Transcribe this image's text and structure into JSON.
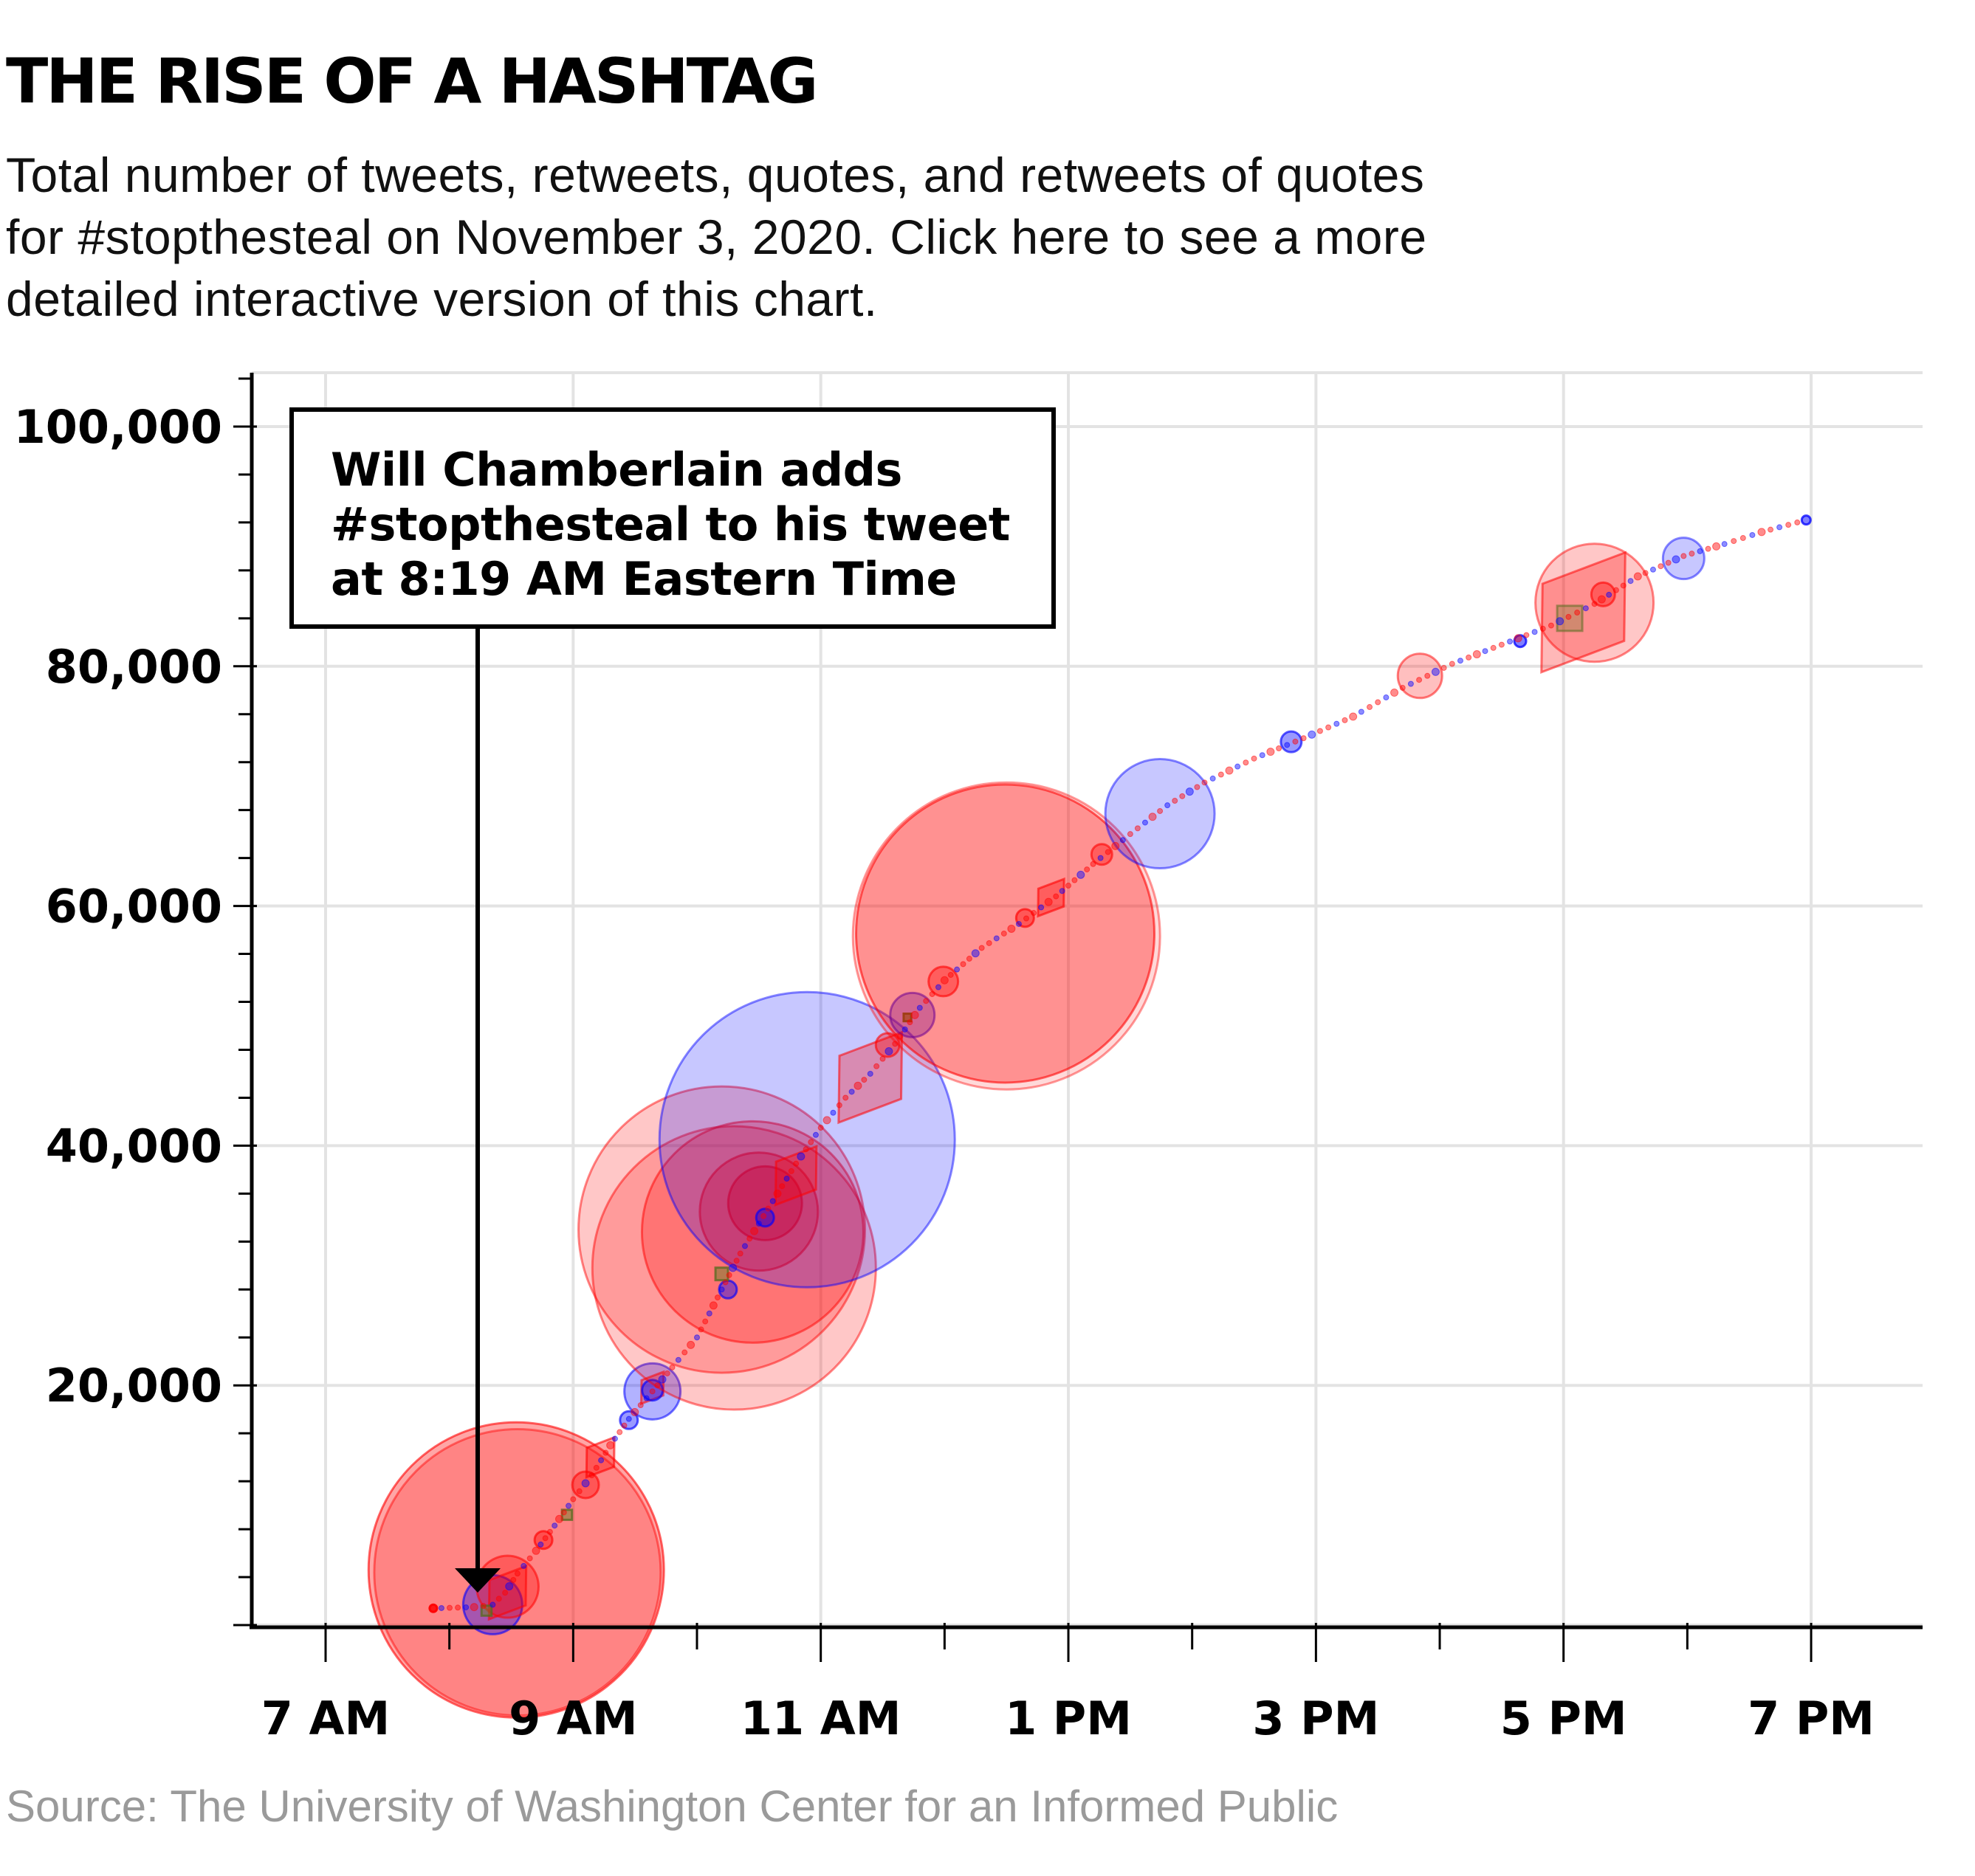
{
  "header": {
    "title": "THE RISE OF A HASHTAG",
    "subtitle_lines": [
      "Total number of tweets, retweets, quotes, and retweets of quotes",
      "for #stopthesteal on November 3, 2020. Click here to see a more",
      "detailed interactive version of this chart."
    ]
  },
  "annotation": {
    "lines": [
      "Will Chamberlain adds",
      "#stopthesteal to his tweet",
      "at 8:19 AM Eastern Time"
    ],
    "points_to": {
      "hour": 8.32,
      "value": 0
    }
  },
  "source": "Source: The University of Washington Center for an Informed Public",
  "colors": {
    "red": "#ff0000",
    "blue": "#0000ff",
    "green": "#2a8a2a",
    "grid": "#e3e3e3",
    "axis": "#000000",
    "source_text": "#9a9a9a"
  },
  "chart_data": {
    "type": "scatter",
    "title": "THE RISE OF A HASHTAG",
    "xlabel": "",
    "ylabel": "",
    "x_unit": "hour of day (Eastern Time, decimal)",
    "xlim": [
      6.5,
      19.9
    ],
    "ylim": [
      0,
      104000
    ],
    "x_ticks": [
      7,
      8,
      9,
      10,
      11,
      12,
      13,
      14,
      15,
      16,
      17,
      18,
      19
    ],
    "x_tick_labels": [
      {
        "hour": 7,
        "label": "7 AM"
      },
      {
        "hour": 9,
        "label": "9 AM"
      },
      {
        "hour": 11,
        "label": "11 AM"
      },
      {
        "hour": 13,
        "label": "1 PM"
      },
      {
        "hour": 15,
        "label": "3 PM"
      },
      {
        "hour": 17,
        "label": "5 PM"
      },
      {
        "hour": 19,
        "label": "7 PM"
      }
    ],
    "y_ticks_minor_step": 4000,
    "y_tick_labels": [
      {
        "value": 20000,
        "label": "20,000"
      },
      {
        "value": 40000,
        "label": "40,000"
      },
      {
        "value": 60000,
        "label": "60,000"
      },
      {
        "value": 80000,
        "label": "80,000"
      },
      {
        "value": 100000,
        "label": "100,000"
      }
    ],
    "grid": true,
    "curve": {
      "name": "cumulative total",
      "points": [
        [
          7.87,
          1400
        ],
        [
          8.2,
          1500
        ],
        [
          8.35,
          1700
        ],
        [
          8.45,
          2700
        ],
        [
          8.55,
          4300
        ],
        [
          8.7,
          6200
        ],
        [
          8.85,
          8300
        ],
        [
          9.0,
          10500
        ],
        [
          9.15,
          12500
        ],
        [
          9.3,
          15000
        ],
        [
          9.45,
          17200
        ],
        [
          9.64,
          19500
        ],
        [
          9.8,
          21500
        ],
        [
          10.0,
          24000
        ],
        [
          10.2,
          28000
        ],
        [
          10.35,
          31000
        ],
        [
          10.5,
          33500
        ],
        [
          10.65,
          36000
        ],
        [
          10.8,
          38500
        ],
        [
          11.0,
          41500
        ],
        [
          11.2,
          44000
        ],
        [
          11.4,
          46000
        ],
        [
          11.6,
          48500
        ],
        [
          11.8,
          51500
        ],
        [
          12.0,
          53800
        ],
        [
          12.3,
          56500
        ],
        [
          12.6,
          58500
        ],
        [
          12.9,
          60800
        ],
        [
          13.2,
          63500
        ],
        [
          13.5,
          66000
        ],
        [
          13.8,
          68400
        ],
        [
          14.1,
          70300
        ],
        [
          14.5,
          72300
        ],
        [
          14.9,
          74000
        ],
        [
          15.3,
          75800
        ],
        [
          15.7,
          78200
        ],
        [
          16.1,
          80200
        ],
        [
          16.5,
          81800
        ],
        [
          16.9,
          83400
        ],
        [
          17.25,
          85200
        ],
        [
          17.6,
          87500
        ],
        [
          17.97,
          89200
        ],
        [
          18.3,
          90200
        ],
        [
          18.6,
          91200
        ],
        [
          18.96,
          92200
        ]
      ]
    },
    "markers": [
      {
        "shape": "circle",
        "color": "red",
        "hour": 8.54,
        "value": 4600,
        "size": 100,
        "opacity": 0.35
      },
      {
        "shape": "circle",
        "color": "red",
        "hour": 8.55,
        "value": 4400,
        "size": 97,
        "opacity": 0.2
      },
      {
        "shape": "circle",
        "color": "blue",
        "hour": 8.35,
        "value": 1700,
        "size": 20,
        "opacity": 0.35
      },
      {
        "shape": "circle",
        "color": "red",
        "hour": 8.47,
        "value": 3200,
        "size": 21,
        "opacity": 0.3
      },
      {
        "shape": "diamond",
        "color": "red",
        "hour": 8.47,
        "value": 2700,
        "size": 20,
        "opacity": 0.3
      },
      {
        "shape": "square",
        "color": "green",
        "hour": 8.3,
        "value": 1200,
        "size": 4,
        "opacity": 0.5
      },
      {
        "shape": "circle",
        "color": "red",
        "hour": 7.87,
        "value": 1400,
        "size": 2.5,
        "opacity": 0.7
      },
      {
        "shape": "circle",
        "color": "red",
        "hour": 8.76,
        "value": 7100,
        "size": 6,
        "opacity": 0.4
      },
      {
        "shape": "square",
        "color": "green",
        "hour": 8.95,
        "value": 9200,
        "size": 4,
        "opacity": 0.5
      },
      {
        "shape": "circle",
        "color": "red",
        "hour": 9.1,
        "value": 11700,
        "size": 9,
        "opacity": 0.35
      },
      {
        "shape": "diamond",
        "color": "red",
        "hour": 9.22,
        "value": 14000,
        "size": 15,
        "opacity": 0.35
      },
      {
        "shape": "circle",
        "color": "blue",
        "hour": 9.64,
        "value": 19500,
        "size": 19,
        "opacity": 0.3
      },
      {
        "shape": "diamond",
        "color": "red",
        "hour": 9.64,
        "value": 19800,
        "size": 12,
        "opacity": 0.3
      },
      {
        "shape": "circle",
        "color": "blue",
        "hour": 9.64,
        "value": 19600,
        "size": 7,
        "opacity": 0.4
      },
      {
        "shape": "circle",
        "color": "blue",
        "hour": 9.45,
        "value": 17100,
        "size": 6,
        "opacity": 0.4
      },
      {
        "shape": "circle",
        "color": "red",
        "hour": 10.3,
        "value": 29800,
        "size": 96,
        "opacity": 0.22
      },
      {
        "shape": "circle",
        "color": "red",
        "hour": 10.2,
        "value": 33000,
        "size": 97,
        "opacity": 0.22
      },
      {
        "shape": "circle",
        "color": "red",
        "hour": 10.45,
        "value": 32800,
        "size": 75,
        "opacity": 0.25
      },
      {
        "shape": "circle",
        "color": "red",
        "hour": 10.5,
        "value": 34500,
        "size": 40,
        "opacity": 0.3
      },
      {
        "shape": "circle",
        "color": "red",
        "hour": 10.55,
        "value": 35200,
        "size": 25,
        "opacity": 0.35
      },
      {
        "shape": "circle",
        "color": "blue",
        "hour": 10.89,
        "value": 40500,
        "size": 100,
        "opacity": 0.22
      },
      {
        "shape": "diamond",
        "color": "red",
        "hour": 10.8,
        "value": 37500,
        "size": 22,
        "opacity": 0.3
      },
      {
        "shape": "diamond",
        "color": "red",
        "hour": 11.4,
        "value": 45700,
        "size": 34,
        "opacity": 0.3
      },
      {
        "shape": "circle",
        "color": "blue",
        "hour": 10.55,
        "value": 34000,
        "size": 6,
        "opacity": 0.4
      },
      {
        "shape": "circle",
        "color": "blue",
        "hour": 10.25,
        "value": 28000,
        "size": 6,
        "opacity": 0.4
      },
      {
        "shape": "square",
        "color": "green",
        "hour": 10.2,
        "value": 29300,
        "size": 5,
        "opacity": 0.5
      },
      {
        "shape": "circle",
        "color": "red",
        "hour": 11.54,
        "value": 48400,
        "size": 8,
        "opacity": 0.35
      },
      {
        "shape": "circle",
        "color": "blue",
        "hour": 11.74,
        "value": 50900,
        "size": 15,
        "opacity": 0.3
      },
      {
        "shape": "square",
        "color": "green",
        "hour": 11.7,
        "value": 50700,
        "size": 3,
        "opacity": 0.7
      },
      {
        "shape": "circle",
        "color": "red",
        "hour": 11.99,
        "value": 53700,
        "size": 10,
        "opacity": 0.35
      },
      {
        "shape": "circle",
        "color": "red",
        "hour": 12.49,
        "value": 57700,
        "size": 101,
        "opacity": 0.33
      },
      {
        "shape": "circle",
        "color": "red",
        "hour": 12.5,
        "value": 57500,
        "size": 104,
        "opacity": 0.15
      },
      {
        "shape": "diamond",
        "color": "red",
        "hour": 12.86,
        "value": 60700,
        "size": 14,
        "opacity": 0.35
      },
      {
        "shape": "circle",
        "color": "red",
        "hour": 12.65,
        "value": 59000,
        "size": 6,
        "opacity": 0.4
      },
      {
        "shape": "circle",
        "color": "red",
        "hour": 13.27,
        "value": 64300,
        "size": 7,
        "opacity": 0.35
      },
      {
        "shape": "circle",
        "color": "blue",
        "hour": 13.74,
        "value": 67700,
        "size": 37,
        "opacity": 0.22
      },
      {
        "shape": "circle",
        "color": "blue",
        "hour": 14.8,
        "value": 73700,
        "size": 7,
        "opacity": 0.4
      },
      {
        "shape": "circle",
        "color": "red",
        "hour": 15.84,
        "value": 79200,
        "size": 15,
        "opacity": 0.25
      },
      {
        "shape": "circle",
        "color": "blue",
        "hour": 16.65,
        "value": 82100,
        "size": 4,
        "opacity": 0.5
      },
      {
        "shape": "circle",
        "color": "red",
        "hour": 17.25,
        "value": 85300,
        "size": 40,
        "opacity": 0.22
      },
      {
        "shape": "diamond",
        "color": "red",
        "hour": 17.16,
        "value": 84500,
        "size": 45,
        "opacity": 0.28
      },
      {
        "shape": "square",
        "color": "green",
        "hour": 17.05,
        "value": 84000,
        "size": 10,
        "opacity": 0.3
      },
      {
        "shape": "circle",
        "color": "red",
        "hour": 17.32,
        "value": 86000,
        "size": 8,
        "opacity": 0.35
      },
      {
        "shape": "circle",
        "color": "blue",
        "hour": 17.97,
        "value": 89000,
        "size": 14,
        "opacity": 0.22
      },
      {
        "shape": "circle",
        "color": "blue",
        "hour": 18.96,
        "value": 92200,
        "size": 3,
        "opacity": 0.5
      }
    ]
  }
}
